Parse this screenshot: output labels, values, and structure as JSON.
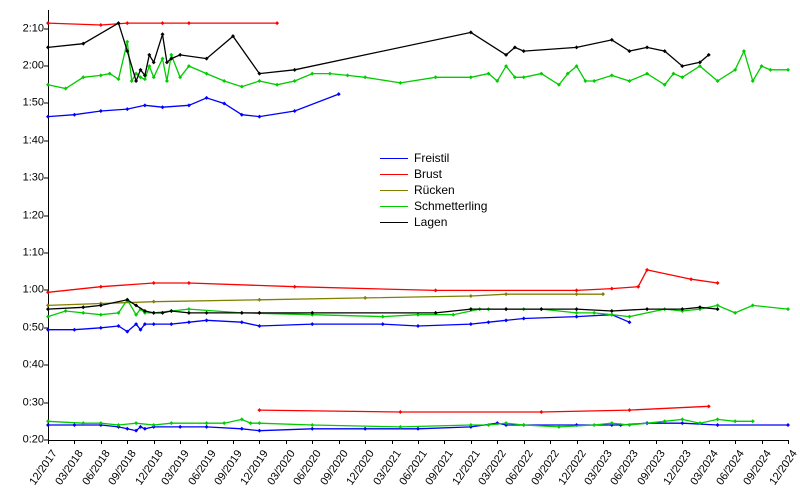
{
  "type": "line",
  "background_color": "#ffffff",
  "text_color": "#000000",
  "axis_color": "#000000",
  "label_fontsize": 11,
  "line_width": 1.3,
  "marker_size": 4,
  "x": {
    "start_month": 12,
    "start_year": 2017,
    "end_month": 12,
    "end_year": 2024,
    "tick_step_months": 3,
    "ticks": [
      "12/2017",
      "03/2018",
      "06/2018",
      "09/2018",
      "12/2018",
      "03/2019",
      "06/2019",
      "09/2019",
      "12/2019",
      "03/2020",
      "06/2020",
      "09/2020",
      "12/2020",
      "03/2021",
      "06/2021",
      "09/2021",
      "12/2021",
      "03/2022",
      "06/2022",
      "09/2022",
      "12/2022",
      "03/2023",
      "06/2023",
      "09/2023",
      "12/2023",
      "03/2024",
      "06/2024",
      "09/2024",
      "12/2024"
    ]
  },
  "y": {
    "min_sec": 20,
    "max_sec": 135,
    "ticks_sec": [
      20,
      30,
      40,
      50,
      60,
      70,
      80,
      90,
      100,
      110,
      120,
      130
    ],
    "ticks_label": [
      "0:20",
      "0:30",
      "0:40",
      "0:50",
      "1:00",
      "1:10",
      "1:20",
      "1:30",
      "1:40",
      "1:50",
      "2:00",
      "2:10"
    ]
  },
  "legend": [
    {
      "label": "Freistil",
      "color": "#0000ff"
    },
    {
      "label": "Brust",
      "color": "#ff0000"
    },
    {
      "label": "Rücken",
      "color": "#808000"
    },
    {
      "label": "Schmetterling",
      "color": "#00cc00"
    },
    {
      "label": "Lagen",
      "color": "#000000"
    }
  ],
  "series": [
    {
      "name": "Freistil-short",
      "color": "#0000ff",
      "points": [
        [
          0,
          24
        ],
        [
          3,
          24
        ],
        [
          6,
          24
        ],
        [
          8,
          23.5
        ],
        [
          9,
          23
        ],
        [
          10,
          22.5
        ],
        [
          10.5,
          23.5
        ],
        [
          11,
          23
        ],
        [
          12,
          23.5
        ],
        [
          15,
          23.5
        ],
        [
          18,
          23.5
        ],
        [
          22,
          23
        ],
        [
          24,
          22.5
        ],
        [
          30,
          23
        ],
        [
          36,
          23
        ],
        [
          42,
          23
        ],
        [
          48,
          23.5
        ],
        [
          51,
          24.5
        ],
        [
          52,
          24
        ],
        [
          54,
          24
        ],
        [
          60,
          24
        ],
        [
          64,
          24
        ],
        [
          65,
          24
        ],
        [
          68,
          24.5
        ],
        [
          72,
          24.5
        ],
        [
          76,
          24
        ],
        [
          84,
          24
        ]
      ]
    },
    {
      "name": "Freistil-mid",
      "color": "#0000ff",
      "points": [
        [
          0,
          49.5
        ],
        [
          3,
          49.5
        ],
        [
          6,
          50
        ],
        [
          8,
          50.5
        ],
        [
          9,
          49
        ],
        [
          10,
          51
        ],
        [
          10.5,
          49.5
        ],
        [
          11,
          51
        ],
        [
          12,
          51
        ],
        [
          14,
          51
        ],
        [
          16,
          51.5
        ],
        [
          18,
          52
        ],
        [
          22,
          51.5
        ],
        [
          24,
          50.5
        ],
        [
          30,
          51
        ],
        [
          38,
          51
        ],
        [
          42,
          50.5
        ],
        [
          48,
          51
        ],
        [
          50,
          51.5
        ],
        [
          52,
          52
        ],
        [
          54,
          52.5
        ],
        [
          60,
          53
        ],
        [
          64,
          53.5
        ],
        [
          66,
          51.5
        ]
      ]
    },
    {
      "name": "Freistil-long",
      "color": "#0000ff",
      "points": [
        [
          0,
          106.5
        ],
        [
          3,
          107
        ],
        [
          6,
          108
        ],
        [
          9,
          108.5
        ],
        [
          11,
          109.5
        ],
        [
          13,
          109
        ],
        [
          16,
          109.5
        ],
        [
          18,
          111.5
        ],
        [
          20,
          110
        ],
        [
          22,
          107
        ],
        [
          24,
          106.5
        ],
        [
          28,
          108
        ],
        [
          33,
          112.5
        ]
      ]
    },
    {
      "name": "Brust-short",
      "color": "#ff0000",
      "points": [
        [
          24,
          28
        ],
        [
          40,
          27.5
        ],
        [
          56,
          27.5
        ],
        [
          66,
          28
        ],
        [
          75,
          29
        ]
      ]
    },
    {
      "name": "Brust-mid",
      "color": "#ff0000",
      "points": [
        [
          0,
          59.5
        ],
        [
          6,
          61
        ],
        [
          12,
          62
        ],
        [
          16,
          62
        ],
        [
          28,
          61
        ],
        [
          44,
          60
        ],
        [
          60,
          60
        ],
        [
          64,
          60.5
        ],
        [
          67,
          61
        ],
        [
          68,
          65.5
        ],
        [
          73,
          63
        ],
        [
          76,
          62
        ]
      ]
    },
    {
      "name": "Brust-long",
      "color": "#ff0000",
      "points": [
        [
          0,
          131.5
        ],
        [
          6,
          131
        ],
        [
          9,
          131.5
        ],
        [
          13,
          131.5
        ],
        [
          16,
          131.5
        ],
        [
          26,
          131.5
        ]
      ]
    },
    {
      "name": "Ruecken-mid",
      "color": "#808000",
      "points": [
        [
          0,
          56
        ],
        [
          6,
          56.5
        ],
        [
          12,
          57
        ],
        [
          24,
          57.5
        ],
        [
          36,
          58
        ],
        [
          48,
          58.5
        ],
        [
          52,
          59
        ],
        [
          60,
          59
        ],
        [
          63,
          59
        ]
      ]
    },
    {
      "name": "Schm-short",
      "color": "#00cc00",
      "points": [
        [
          0,
          25
        ],
        [
          4,
          24.5
        ],
        [
          6,
          24.5
        ],
        [
          8,
          24
        ],
        [
          10,
          24.5
        ],
        [
          12,
          24
        ],
        [
          14,
          24.5
        ],
        [
          18,
          24.5
        ],
        [
          20,
          24.5
        ],
        [
          22,
          25.5
        ],
        [
          23,
          24.5
        ],
        [
          24,
          24.5
        ],
        [
          30,
          24
        ],
        [
          40,
          23.5
        ],
        [
          48,
          24
        ],
        [
          50,
          24
        ],
        [
          52,
          24.5
        ],
        [
          54,
          24
        ],
        [
          58,
          23.5
        ],
        [
          62,
          24
        ],
        [
          64,
          24.5
        ],
        [
          66,
          24
        ],
        [
          70,
          25
        ],
        [
          72,
          25.5
        ],
        [
          74,
          24.5
        ],
        [
          76,
          25.5
        ],
        [
          78,
          25
        ],
        [
          80,
          25
        ]
      ]
    },
    {
      "name": "Schm-mid",
      "color": "#00cc00",
      "points": [
        [
          0,
          53
        ],
        [
          2,
          54.5
        ],
        [
          4,
          54
        ],
        [
          6,
          53.5
        ],
        [
          8,
          54
        ],
        [
          9,
          57.5
        ],
        [
          10,
          53.5
        ],
        [
          10.5,
          55
        ],
        [
          11,
          54
        ],
        [
          12,
          54
        ],
        [
          14,
          54.5
        ],
        [
          16,
          55
        ],
        [
          22,
          54
        ],
        [
          30,
          53.5
        ],
        [
          38,
          53
        ],
        [
          42,
          53.5
        ],
        [
          46,
          53.5
        ],
        [
          49,
          55
        ],
        [
          50,
          55
        ],
        [
          52,
          55
        ],
        [
          54,
          55
        ],
        [
          56,
          55
        ],
        [
          60,
          54
        ],
        [
          62,
          54
        ],
        [
          64,
          53.5
        ],
        [
          66,
          53
        ],
        [
          70,
          55
        ],
        [
          72,
          54.5
        ],
        [
          74,
          55
        ],
        [
          76,
          56
        ],
        [
          78,
          54
        ],
        [
          80,
          56
        ],
        [
          84,
          55
        ]
      ]
    },
    {
      "name": "Schm-long",
      "color": "#00cc00",
      "points": [
        [
          0,
          115
        ],
        [
          2,
          114
        ],
        [
          4,
          117
        ],
        [
          6,
          117.5
        ],
        [
          7,
          118
        ],
        [
          8,
          116.5
        ],
        [
          9,
          126.5
        ],
        [
          9.5,
          116
        ],
        [
          10,
          118
        ],
        [
          10.5,
          117
        ],
        [
          11,
          116.5
        ],
        [
          11.5,
          120
        ],
        [
          12,
          117
        ],
        [
          13,
          122
        ],
        [
          13.5,
          116
        ],
        [
          14,
          123
        ],
        [
          15,
          117
        ],
        [
          16,
          120
        ],
        [
          18,
          118
        ],
        [
          20,
          116
        ],
        [
          22,
          114.5
        ],
        [
          24,
          116
        ],
        [
          26,
          115
        ],
        [
          28,
          116
        ],
        [
          30,
          118
        ],
        [
          32,
          118
        ],
        [
          34,
          117.5
        ],
        [
          36,
          117
        ],
        [
          40,
          115.5
        ],
        [
          44,
          117
        ],
        [
          48,
          117
        ],
        [
          50,
          118
        ],
        [
          51,
          116
        ],
        [
          52,
          120
        ],
        [
          53,
          117
        ],
        [
          54,
          117
        ],
        [
          56,
          118
        ],
        [
          58,
          115
        ],
        [
          59,
          118
        ],
        [
          60,
          120
        ],
        [
          61,
          116
        ],
        [
          62,
          116
        ],
        [
          64,
          117.5
        ],
        [
          66,
          116
        ],
        [
          68,
          118
        ],
        [
          70,
          115
        ],
        [
          71,
          118
        ],
        [
          72,
          117
        ],
        [
          74,
          120
        ],
        [
          76,
          116
        ],
        [
          78,
          119
        ],
        [
          79,
          124
        ],
        [
          80,
          116
        ],
        [
          81,
          120
        ],
        [
          82,
          119
        ],
        [
          84,
          119
        ]
      ]
    },
    {
      "name": "Lagen-mid",
      "color": "#000000",
      "points": [
        [
          0,
          55
        ],
        [
          4,
          55.5
        ],
        [
          6,
          56
        ],
        [
          9,
          57.5
        ],
        [
          10,
          56
        ],
        [
          11,
          54.5
        ],
        [
          12,
          54
        ],
        [
          13,
          54
        ],
        [
          14,
          54.5
        ],
        [
          16,
          54
        ],
        [
          18,
          54
        ],
        [
          22,
          54
        ],
        [
          24,
          54
        ],
        [
          30,
          54
        ],
        [
          44,
          54
        ],
        [
          48,
          55
        ],
        [
          52,
          55
        ],
        [
          56,
          55
        ],
        [
          60,
          55
        ],
        [
          64,
          54.5
        ],
        [
          68,
          55
        ],
        [
          72,
          55
        ],
        [
          74,
          55.5
        ],
        [
          76,
          55
        ]
      ]
    },
    {
      "name": "Lagen-long",
      "color": "#000000",
      "points": [
        [
          0,
          125
        ],
        [
          4,
          126
        ],
        [
          8,
          131.5
        ],
        [
          9,
          124
        ],
        [
          10,
          116
        ],
        [
          10.5,
          119
        ],
        [
          11,
          117.5
        ],
        [
          11.5,
          123
        ],
        [
          12,
          121
        ],
        [
          13,
          128.5
        ],
        [
          13.5,
          121
        ],
        [
          14,
          122
        ],
        [
          15,
          123
        ],
        [
          18,
          122
        ],
        [
          21,
          128
        ],
        [
          24,
          118
        ],
        [
          28,
          119
        ],
        [
          48,
          129
        ],
        [
          52,
          123
        ],
        [
          53,
          125
        ],
        [
          54,
          124
        ],
        [
          60,
          125
        ],
        [
          64,
          127
        ],
        [
          66,
          124
        ],
        [
          68,
          125
        ],
        [
          70,
          124
        ],
        [
          72,
          120
        ],
        [
          74,
          121
        ],
        [
          75,
          123
        ]
      ]
    }
  ]
}
